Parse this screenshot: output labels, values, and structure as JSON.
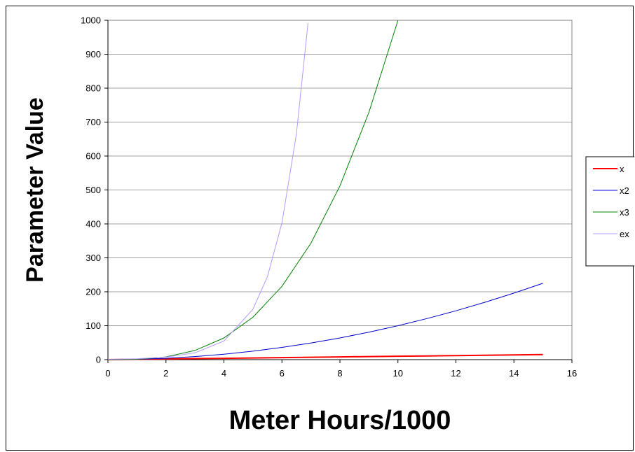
{
  "chart_data": {
    "type": "line",
    "xlabel": "Meter Hours/1000",
    "ylabel": "Parameter Value",
    "xlim": [
      0,
      16
    ],
    "ylim": [
      0,
      1000
    ],
    "x_ticks": [
      0,
      2,
      4,
      6,
      8,
      10,
      12,
      14,
      16
    ],
    "y_ticks": [
      0,
      100,
      200,
      300,
      400,
      500,
      600,
      700,
      800,
      900,
      1000
    ],
    "grid": "horizontal",
    "legend_position": "right",
    "series": [
      {
        "name": "x",
        "color": "#ff0000",
        "x": [
          0,
          1,
          2,
          3,
          4,
          5,
          6,
          7,
          8,
          9,
          10,
          11,
          12,
          13,
          14,
          15
        ],
        "y": [
          0,
          1,
          2,
          3,
          4,
          5,
          6,
          7,
          8,
          9,
          10,
          11,
          12,
          13,
          14,
          15
        ]
      },
      {
        "name": "x2",
        "color": "#0000cc",
        "x": [
          0,
          1,
          2,
          3,
          4,
          5,
          6,
          7,
          8,
          9,
          10,
          11,
          12,
          13,
          14,
          15
        ],
        "y": [
          0,
          1,
          4,
          9,
          16,
          25,
          36,
          49,
          64,
          81,
          100,
          121,
          144,
          169,
          196,
          225
        ]
      },
      {
        "name": "x3",
        "color": "#008000",
        "x": [
          0,
          1,
          2,
          3,
          4,
          5,
          6,
          7,
          8,
          9,
          10
        ],
        "y": [
          0,
          1,
          8,
          27,
          64,
          125,
          216,
          343,
          512,
          729,
          1000
        ]
      },
      {
        "name": "ex",
        "color": "#b399ff",
        "x": [
          0,
          1,
          2,
          3,
          4,
          5,
          5.5,
          6,
          6.5,
          6.9
        ],
        "y": [
          1,
          2.72,
          7.39,
          20.09,
          54.6,
          148.4,
          244.7,
          403.4,
          665.1,
          992.3
        ]
      }
    ]
  }
}
